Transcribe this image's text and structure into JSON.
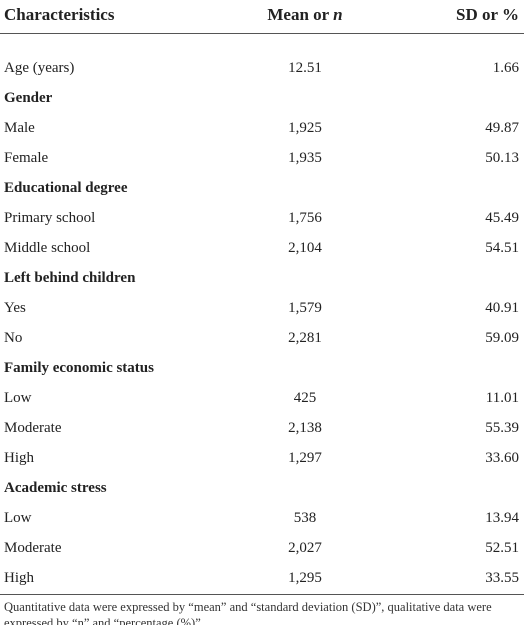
{
  "table": {
    "header": [
      [
        "Characteristics"
      ],
      [
        "Mean or ",
        "n"
      ],
      [
        "SD or %"
      ]
    ],
    "rows": [
      [
        "Age (years)",
        "12.51",
        "1.66"
      ],
      [
        "Gender"
      ],
      [
        "Male",
        "1,925",
        "49.87"
      ],
      [
        "Female",
        "1,935",
        "50.13"
      ],
      [
        "Educational degree"
      ],
      [
        "Primary school",
        "1,756",
        "45.49"
      ],
      [
        "Middle school",
        "2,104",
        "54.51"
      ],
      [
        "Left behind children"
      ],
      [
        "Yes",
        "1,579",
        "40.91"
      ],
      [
        "No",
        "2,281",
        "59.09"
      ],
      [
        "Family economic status"
      ],
      [
        "Low",
        "425",
        "11.01"
      ],
      [
        "Moderate",
        "2,138",
        "55.39"
      ],
      [
        "High",
        "1,297",
        "33.60"
      ],
      [
        "Academic stress"
      ],
      [
        "Low",
        "538",
        "13.94"
      ],
      [
        "Moderate",
        "2,027",
        "52.51"
      ],
      [
        "High",
        "1,295",
        "33.55"
      ]
    ],
    "footnote": "Quantitative data were expressed by “mean” and “standard deviation (SD)”, qualitative data were expressed by “n” and “percentage (%)”."
  }
}
